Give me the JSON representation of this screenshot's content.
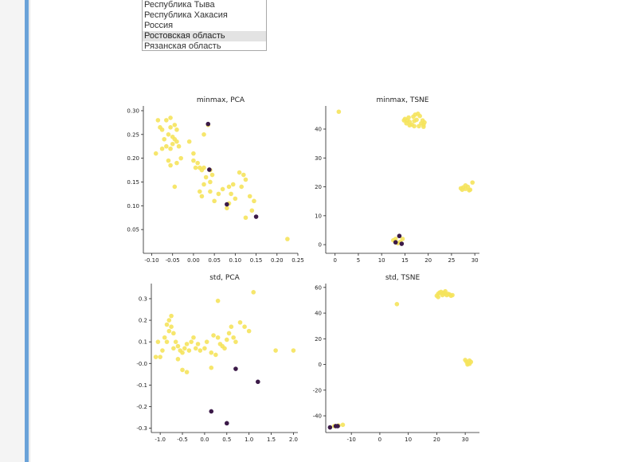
{
  "listbox": {
    "options": [
      {
        "label": "Республика Тыва",
        "selected": false
      },
      {
        "label": "Республика Хакасия",
        "selected": false
      },
      {
        "label": "Россия",
        "selected": false
      },
      {
        "label": "Ростовская область",
        "selected": true
      },
      {
        "label": "Рязанская область",
        "selected": false
      }
    ]
  },
  "colors": {
    "majority": "#f5e35c",
    "minority": "#3b1a48"
  },
  "chart_data": [
    {
      "type": "scatter",
      "title": "minmax, PCA",
      "xlim": [
        -0.12,
        0.25
      ],
      "ylim": [
        0.0,
        0.31
      ],
      "xticks": [
        -0.1,
        -0.05,
        0.0,
        0.05,
        0.1,
        0.15,
        0.2,
        0.25
      ],
      "xtick_labels": [
        "-0.10",
        "-0.05",
        "0.00",
        "0.05",
        "0.10",
        "0.15",
        "0.20",
        "0.25"
      ],
      "yticks": [
        0.05,
        0.1,
        0.15,
        0.2,
        0.25,
        0.3
      ],
      "ytick_labels": [
        "0.05",
        "0.10",
        "0.15",
        "0.20",
        "0.25",
        "0.30"
      ],
      "series": [
        {
          "class": "majority",
          "points": [
            [
              -0.085,
              0.28
            ],
            [
              -0.075,
              0.26
            ],
            [
              -0.065,
              0.28
            ],
            [
              -0.055,
              0.285
            ],
            [
              -0.045,
              0.27
            ],
            [
              -0.04,
              0.26
            ],
            [
              -0.055,
              0.265
            ],
            [
              -0.06,
              0.25
            ],
            [
              -0.05,
              0.245
            ],
            [
              -0.07,
              0.24
            ],
            [
              -0.08,
              0.265
            ],
            [
              -0.045,
              0.24
            ],
            [
              -0.04,
              0.235
            ],
            [
              -0.035,
              0.225
            ],
            [
              -0.05,
              0.23
            ],
            [
              -0.065,
              0.225
            ],
            [
              -0.055,
              0.22
            ],
            [
              -0.075,
              0.22
            ],
            [
              -0.09,
              0.21
            ],
            [
              -0.06,
              0.195
            ],
            [
              -0.04,
              0.19
            ],
            [
              -0.055,
              0.185
            ],
            [
              -0.03,
              0.2
            ],
            [
              -0.01,
              0.235
            ],
            [
              0.01,
              0.19
            ],
            [
              0.0,
              0.195
            ],
            [
              0.005,
              0.18
            ],
            [
              0.015,
              0.18
            ],
            [
              0.02,
              0.175
            ],
            [
              0.025,
              0.18
            ],
            [
              0.03,
              0.16
            ],
            [
              0.04,
              0.175
            ],
            [
              0.045,
              0.165
            ],
            [
              0.04,
              0.15
            ],
            [
              0.025,
              0.145
            ],
            [
              0.04,
              0.13
            ],
            [
              0.015,
              0.13
            ],
            [
              0.02,
              0.12
            ],
            [
              0.05,
              0.11
            ],
            [
              0.06,
              0.125
            ],
            [
              0.07,
              0.135
            ],
            [
              0.085,
              0.14
            ],
            [
              0.095,
              0.145
            ],
            [
              0.09,
              0.125
            ],
            [
              0.1,
              0.115
            ],
            [
              0.11,
              0.17
            ],
            [
              0.12,
              0.165
            ],
            [
              0.125,
              0.155
            ],
            [
              0.115,
              0.14
            ],
            [
              0.135,
              0.12
            ],
            [
              0.145,
              0.11
            ],
            [
              0.14,
              0.09
            ],
            [
              0.125,
              0.075
            ],
            [
              0.08,
              0.095
            ],
            [
              0.085,
              0.105
            ],
            [
              -0.045,
              0.14
            ],
            [
              0.035,
              0.27
            ],
            [
              0.225,
              0.03
            ],
            [
              0.025,
              0.25
            ],
            [
              0.0,
              0.21
            ]
          ]
        },
        {
          "class": "minority",
          "points": [
            [
              0.035,
              0.272
            ],
            [
              0.038,
              0.176
            ],
            [
              0.08,
              0.103
            ],
            [
              0.15,
              0.077
            ]
          ]
        }
      ]
    },
    {
      "type": "scatter",
      "title": "minmax, TSNE",
      "xlim": [
        -2,
        31
      ],
      "ylim": [
        -3,
        48
      ],
      "xticks": [
        0,
        5,
        10,
        15,
        20,
        25,
        30
      ],
      "xtick_labels": [
        "0",
        "5",
        "10",
        "15",
        "20",
        "25",
        "30"
      ],
      "yticks": [
        0,
        10,
        20,
        30,
        40
      ],
      "ytick_labels": [
        "0",
        "10",
        "20",
        "30",
        "40"
      ],
      "series": [
        {
          "class": "majority",
          "points": [
            [
              0.8,
              46.0
            ],
            [
              15.0,
              43.5
            ],
            [
              15.5,
              43.0
            ],
            [
              16.0,
              42.5
            ],
            [
              16.5,
              41.5
            ],
            [
              17.0,
              42.8
            ],
            [
              17.5,
              43.2
            ],
            [
              17.2,
              45.0
            ],
            [
              17.8,
              45.3
            ],
            [
              18.2,
              44.5
            ],
            [
              18.5,
              42.0
            ],
            [
              19.0,
              41.5
            ],
            [
              19.2,
              42.3
            ],
            [
              18.8,
              43.0
            ],
            [
              17.0,
              41.0
            ],
            [
              16.0,
              41.3
            ],
            [
              15.3,
              42.0
            ],
            [
              14.8,
              43.0
            ],
            [
              15.8,
              44.0
            ],
            [
              16.8,
              44.3
            ],
            [
              18.0,
              41.0
            ],
            [
              19.0,
              40.8
            ],
            [
              27.0,
              19.5
            ],
            [
              27.5,
              19.8
            ],
            [
              28.0,
              19.3
            ],
            [
              28.5,
              20.0
            ],
            [
              29.0,
              19.0
            ],
            [
              29.5,
              21.5
            ],
            [
              28.0,
              20.5
            ],
            [
              27.3,
              19.0
            ],
            [
              28.8,
              18.8
            ],
            [
              12.5,
              1.5
            ],
            [
              13.0,
              2.0
            ],
            [
              13.5,
              0.5
            ],
            [
              14.0,
              1.0
            ],
            [
              14.5,
              2.0
            ]
          ]
        },
        {
          "class": "minority",
          "points": [
            [
              13.8,
              3.0
            ],
            [
              13.0,
              0.8
            ],
            [
              14.3,
              0.3
            ]
          ]
        }
      ]
    },
    {
      "type": "scatter",
      "title": "std, PCA",
      "xlim": [
        -1.2,
        2.1
      ],
      "ylim": [
        -0.32,
        0.37
      ],
      "xticks": [
        -1.0,
        -0.5,
        0.0,
        0.5,
        1.0,
        1.5,
        2.0
      ],
      "xtick_labels": [
        "-1.0",
        "-0.5",
        "0.0",
        "0.5",
        "1.0",
        "1.5",
        "2.0"
      ],
      "yticks": [
        -0.3,
        -0.2,
        -0.1,
        0.0,
        0.1,
        0.2,
        0.3
      ],
      "ytick_labels": [
        "-0.3",
        "-0.2",
        "-0.1",
        "-0.0",
        "0.1",
        "0.2",
        "0.3"
      ],
      "series": [
        {
          "class": "majority",
          "points": [
            [
              -1.1,
              0.03
            ],
            [
              -1.0,
              0.03
            ],
            [
              -0.95,
              0.06
            ],
            [
              -1.05,
              0.1
            ],
            [
              -0.9,
              0.12
            ],
            [
              -0.85,
              0.1
            ],
            [
              -0.8,
              0.15
            ],
            [
              -0.75,
              0.17
            ],
            [
              -0.8,
              0.2
            ],
            [
              -0.75,
              0.22
            ],
            [
              -0.85,
              0.18
            ],
            [
              -0.7,
              0.14
            ],
            [
              -0.65,
              0.1
            ],
            [
              -0.6,
              0.08
            ],
            [
              -0.55,
              0.06
            ],
            [
              -0.5,
              0.05
            ],
            [
              -0.45,
              0.07
            ],
            [
              -0.4,
              0.09
            ],
            [
              -0.35,
              0.06
            ],
            [
              -0.3,
              0.1
            ],
            [
              -0.25,
              0.12
            ],
            [
              -0.2,
              0.07
            ],
            [
              -0.1,
              0.06
            ],
            [
              0.0,
              0.07
            ],
            [
              0.05,
              0.1
            ],
            [
              0.15,
              0.05
            ],
            [
              0.2,
              0.13
            ],
            [
              0.3,
              0.12
            ],
            [
              0.35,
              0.09
            ],
            [
              0.4,
              0.08
            ],
            [
              0.45,
              0.07
            ],
            [
              0.5,
              0.11
            ],
            [
              0.55,
              0.14
            ],
            [
              0.6,
              0.17
            ],
            [
              0.65,
              0.12
            ],
            [
              0.7,
              0.1
            ],
            [
              0.8,
              0.19
            ],
            [
              0.9,
              0.17
            ],
            [
              1.0,
              0.15
            ],
            [
              1.1,
              0.33
            ],
            [
              0.3,
              0.29
            ],
            [
              0.15,
              -0.02
            ],
            [
              -0.5,
              -0.03
            ],
            [
              -0.4,
              -0.04
            ],
            [
              1.6,
              0.06
            ],
            [
              2.0,
              0.06
            ],
            [
              -0.6,
              0.02
            ],
            [
              -0.7,
              0.07
            ],
            [
              0.25,
              0.04
            ],
            [
              -0.15,
              0.09
            ]
          ]
        },
        {
          "class": "minority",
          "points": [
            [
              0.7,
              -0.025
            ],
            [
              1.2,
              -0.085
            ],
            [
              0.15,
              -0.222
            ],
            [
              0.5,
              -0.277
            ]
          ]
        }
      ]
    },
    {
      "type": "scatter",
      "title": "std, TSNE",
      "xlim": [
        -19,
        35
      ],
      "ylim": [
        -53,
        63
      ],
      "xticks": [
        -10,
        0,
        10,
        20,
        30
      ],
      "xtick_labels": [
        "-10",
        "0",
        "10",
        "20",
        "30"
      ],
      "yticks": [
        -40,
        -20,
        0,
        20,
        40,
        60
      ],
      "ytick_labels": [
        "-40",
        "-20",
        "0",
        "20",
        "40",
        "60"
      ],
      "series": [
        {
          "class": "majority",
          "points": [
            [
              20.0,
              53.5
            ],
            [
              20.5,
              55.0
            ],
            [
              21.0,
              56.0
            ],
            [
              21.5,
              56.5
            ],
            [
              22.0,
              55.5
            ],
            [
              22.5,
              56.0
            ],
            [
              23.0,
              55.0
            ],
            [
              23.5,
              54.0
            ],
            [
              24.0,
              55.0
            ],
            [
              24.5,
              54.5
            ],
            [
              25.0,
              53.5
            ],
            [
              25.5,
              54.0
            ],
            [
              20.5,
              52.5
            ],
            [
              22.0,
              54.0
            ],
            [
              23.0,
              57.0
            ],
            [
              6.0,
              47.0
            ],
            [
              30.0,
              3.5
            ],
            [
              30.5,
              2.0
            ],
            [
              31.0,
              1.0
            ],
            [
              31.5,
              3.0
            ],
            [
              32.0,
              2.0
            ],
            [
              30.8,
              0.0
            ],
            [
              31.5,
              0.5
            ],
            [
              -14.5,
              -47.5
            ],
            [
              -13.0,
              -47.0
            ],
            [
              -16.0,
              -48.0
            ]
          ]
        },
        {
          "class": "minority",
          "points": [
            [
              -17.5,
              -49.0
            ],
            [
              -15.5,
              -48.0
            ],
            [
              -14.8,
              -48.0
            ]
          ]
        }
      ]
    }
  ]
}
